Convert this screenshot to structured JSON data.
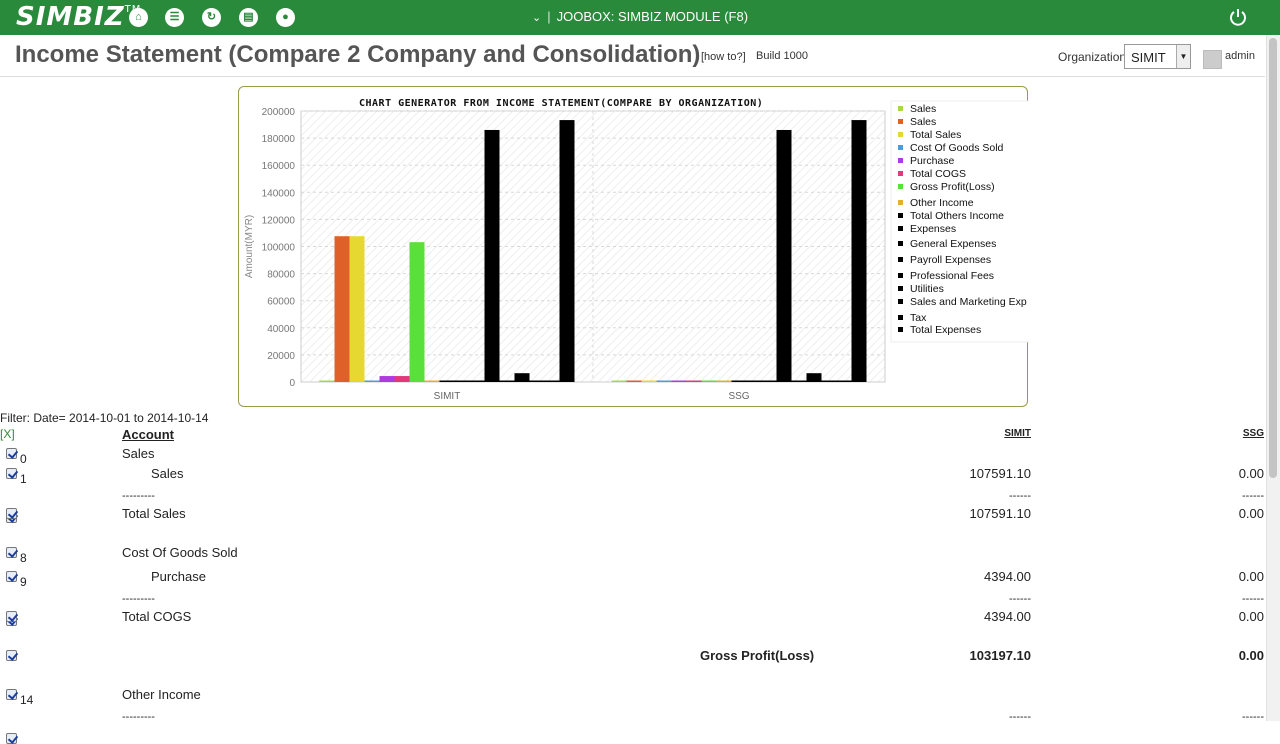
{
  "topbar": {
    "logo": "SIMBIZ",
    "logo_tm": "TM",
    "icons": [
      "home-icon",
      "layers-icon",
      "refresh-icon",
      "report-icon",
      "lightbulb-icon"
    ],
    "module_label": "JOOBOX: SIMBIZ MODULE (F8)",
    "module_sep": "|"
  },
  "header": {
    "title": "Income Statement (Compare 2 Company and Consolidation)",
    "how_to": "[how to?]",
    "build": "Build 1000",
    "org_label": "Organization",
    "org_value": "SIMIT",
    "user": "admin"
  },
  "chart_data": {
    "type": "bar",
    "title": "CHART GENERATOR FROM INCOME STATEMENT(COMPARE BY ORGANIZATION)",
    "ylabel": "Amount(MYR)",
    "xlabel": "",
    "ylim": [
      0,
      200000
    ],
    "yticks": [
      "0",
      "20000",
      "40000",
      "60000",
      "80000",
      "100000",
      "120000",
      "140000",
      "160000",
      "180000",
      "200000"
    ],
    "categories": [
      "SIMIT",
      "SSG"
    ],
    "legend_position": "right",
    "grid": true,
    "series": [
      {
        "name": "Sales",
        "color": "#a8d84a",
        "values": [
          0,
          0
        ]
      },
      {
        "name": "Sales",
        "color": "#e0602a",
        "values": [
          107591.1,
          0
        ]
      },
      {
        "name": "Total Sales",
        "color": "#e6d830",
        "values": [
          107591.1,
          0
        ]
      },
      {
        "name": "Cost Of Goods Sold",
        "color": "#4a9ee0",
        "values": [
          0,
          0
        ]
      },
      {
        "name": "Purchase",
        "color": "#b03ae0",
        "values": [
          4394.0,
          0
        ]
      },
      {
        "name": "Total COGS",
        "color": "#e03a7a",
        "values": [
          4394.0,
          0
        ]
      },
      {
        "name": "Gross Profit(Loss)",
        "color": "#5ae03a",
        "values": [
          103197.1,
          0
        ]
      },
      {
        "name": "Other Income",
        "color": "#e0b030",
        "values": [
          0,
          0
        ]
      },
      {
        "name": "Total Others Income",
        "color": "#000000",
        "values": [
          0,
          0
        ]
      },
      {
        "name": "Expenses",
        "color": "#000000",
        "values": [
          0,
          0
        ]
      },
      {
        "name": "General Expenses",
        "color": "#000000",
        "values": [
          0,
          0
        ]
      },
      {
        "name": "Payroll Expenses",
        "color": "#000000",
        "values": [
          186000,
          186000
        ]
      },
      {
        "name": "Professional Fees",
        "color": "#000000",
        "values": [
          800,
          800
        ]
      },
      {
        "name": "Utilities",
        "color": "#000000",
        "values": [
          6500,
          6500
        ]
      },
      {
        "name": "Sales  and  Marketing Exp",
        "color": "#000000",
        "values": [
          0,
          0
        ]
      },
      {
        "name": "Tax",
        "color": "#000000",
        "values": [
          0,
          0
        ]
      },
      {
        "name": "Total Expenses",
        "color": "#000000",
        "values": [
          193300,
          193300
        ]
      }
    ]
  },
  "filter": {
    "text": "Filter: Date= 2014-10-01 to 2014-10-14",
    "toggle": "[X]"
  },
  "table": {
    "headers": {
      "account": "Account",
      "col1": "SIMIT",
      "col2": "SSG"
    },
    "rows": [
      {
        "no": "0",
        "account": "Sales",
        "indent": 0,
        "v1": "",
        "v2": "",
        "bold": false
      },
      {
        "no": "1",
        "account": "Sales",
        "indent": 1,
        "v1": "107591.10",
        "v2": "0.00",
        "bold": false
      },
      {
        "no": "",
        "account": "---------",
        "indent": 0,
        "v1": "------",
        "v2": "------",
        "bold": false,
        "dash": true
      },
      {
        "no": "",
        "account": "Total Sales",
        "indent": 0,
        "v1": "107591.10",
        "v2": "0.00",
        "bold": false
      },
      {
        "no": "8",
        "account": "Cost Of Goods Sold",
        "indent": 0,
        "v1": "",
        "v2": "",
        "bold": false
      },
      {
        "no": "9",
        "account": "Purchase",
        "indent": 1,
        "v1": "4394.00",
        "v2": "0.00",
        "bold": false
      },
      {
        "no": "",
        "account": "---------",
        "indent": 0,
        "v1": "------",
        "v2": "------",
        "bold": false,
        "dash": true
      },
      {
        "no": "",
        "account": "Total COGS",
        "indent": 0,
        "v1": "4394.00",
        "v2": "0.00",
        "bold": false
      },
      {
        "no": "",
        "account": "Gross Profit(Loss)",
        "indent": 2,
        "v1": "103197.10",
        "v2": "0.00",
        "bold": true
      },
      {
        "no": "14",
        "account": "Other Income",
        "indent": 0,
        "v1": "",
        "v2": "",
        "bold": false
      },
      {
        "no": "",
        "account": "---------",
        "indent": 0,
        "v1": "------",
        "v2": "------",
        "bold": false,
        "dash": true
      }
    ]
  }
}
